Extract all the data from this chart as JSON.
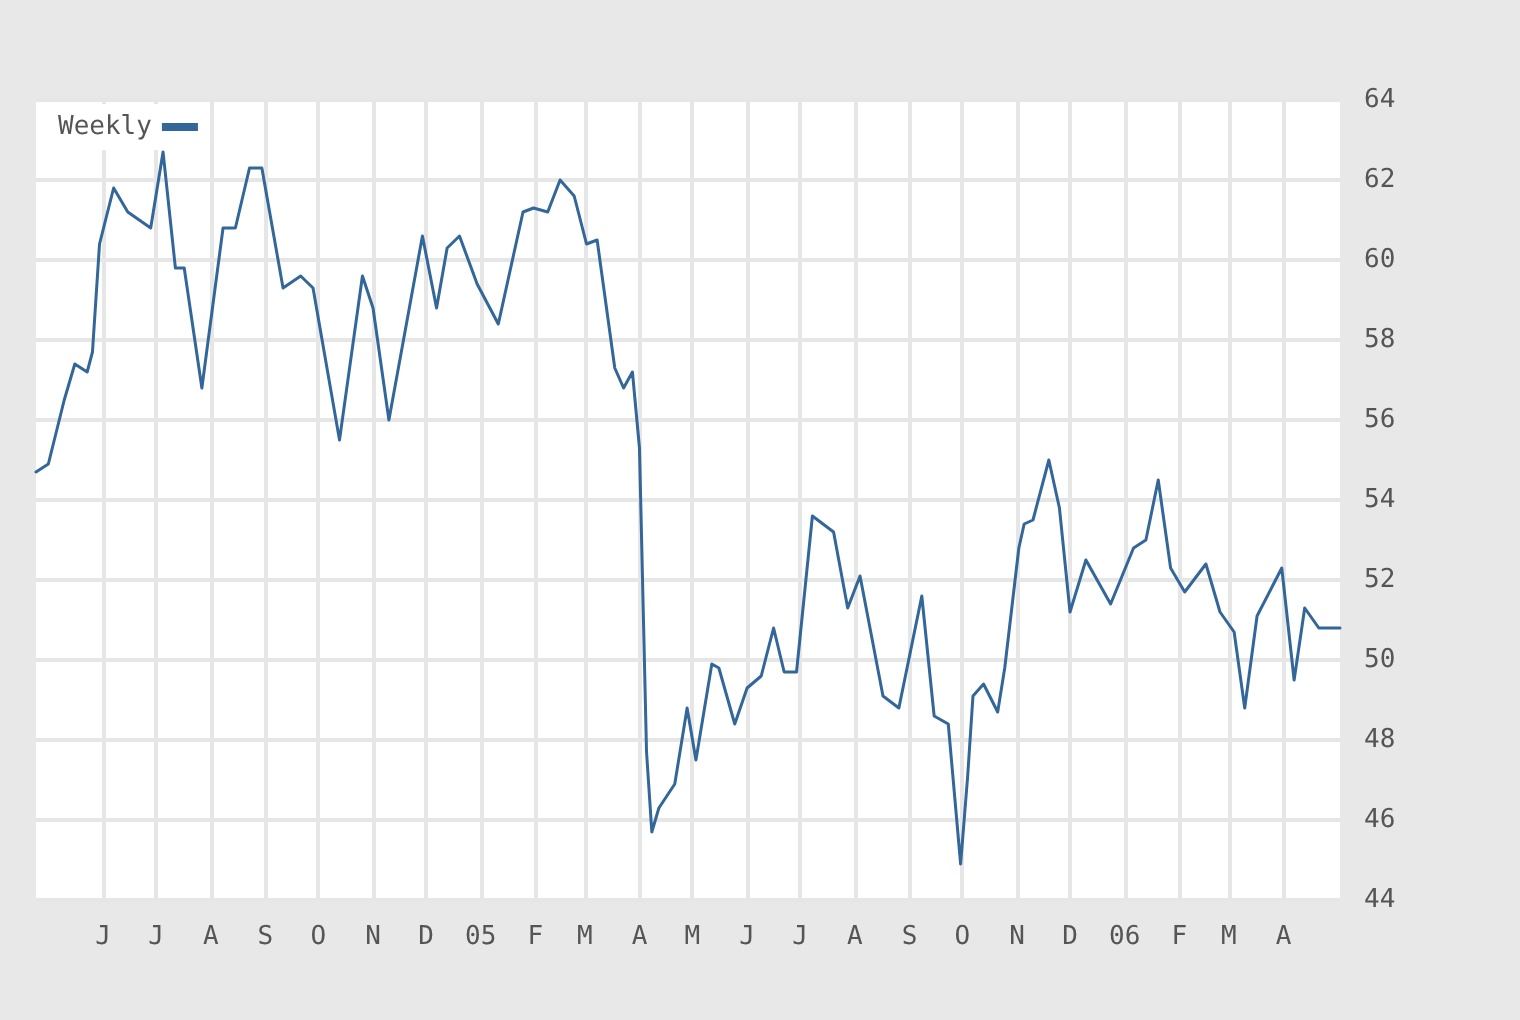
{
  "chart_data": {
    "type": "line",
    "x": [
      "2004-04-24",
      "2004-05-01",
      "2004-05-10",
      "2004-05-16",
      "2004-05-23",
      "2004-05-26",
      "2004-05-30",
      "2004-06-07",
      "2004-06-15",
      "2004-06-28",
      "2004-07-05",
      "2004-07-12",
      "2004-07-17",
      "2004-07-27",
      "2004-08-08",
      "2004-08-15",
      "2004-08-23",
      "2004-08-30",
      "2004-09-11",
      "2004-09-21",
      "2004-09-28",
      "2004-10-13",
      "2004-10-26",
      "2004-11-01",
      "2004-11-10",
      "2004-11-29",
      "2004-12-07",
      "2004-12-13",
      "2004-12-20",
      "2004-12-30",
      "2005-01-11",
      "2005-01-25",
      "2005-01-31",
      "2005-02-08",
      "2005-02-15",
      "2005-02-23",
      "2005-03-02",
      "2005-03-08",
      "2005-03-18",
      "2005-03-23",
      "2005-03-28",
      "2005-04-01",
      "2005-04-05",
      "2005-04-08",
      "2005-04-12",
      "2005-04-18",
      "2005-04-21",
      "2005-04-28",
      "2005-05-03",
      "2005-05-12",
      "2005-05-16",
      "2005-05-25",
      "2005-06-01",
      "2005-06-09",
      "2005-06-16",
      "2005-06-22",
      "2005-06-29",
      "2005-07-08",
      "2005-07-20",
      "2005-07-28",
      "2005-08-04",
      "2005-08-17",
      "2005-08-26",
      "2005-09-08",
      "2005-09-15",
      "2005-09-23",
      "2005-09-30",
      "2005-10-04",
      "2005-10-07",
      "2005-10-13",
      "2005-10-21",
      "2005-10-25",
      "2005-11-02",
      "2005-11-05",
      "2005-11-10",
      "2005-11-19",
      "2005-11-25",
      "2005-12-01",
      "2005-12-10",
      "2005-12-24",
      "2006-01-06",
      "2006-01-13",
      "2006-01-20",
      "2006-01-27",
      "2006-02-04",
      "2006-02-16",
      "2006-02-24",
      "2006-03-04",
      "2006-03-10",
      "2006-03-17",
      "2006-03-31",
      "2006-04-07",
      "2006-04-13",
      "2006-04-21",
      "2006-05-03"
    ],
    "series": [
      {
        "name": "Weekly",
        "color": "#336699",
        "values": [
          54.7,
          54.9,
          56.5,
          57.4,
          57.2,
          57.7,
          60.4,
          61.8,
          61.2,
          60.8,
          62.7,
          59.8,
          59.8,
          56.8,
          60.8,
          60.8,
          62.3,
          62.3,
          59.3,
          59.6,
          59.3,
          55.5,
          59.6,
          58.8,
          56.0,
          60.6,
          58.8,
          60.3,
          60.6,
          59.4,
          58.4,
          61.2,
          61.3,
          61.2,
          62.0,
          61.6,
          60.4,
          60.5,
          57.3,
          56.8,
          57.2,
          55.3,
          47.7,
          45.7,
          46.3,
          46.7,
          46.9,
          48.8,
          47.5,
          49.9,
          49.8,
          48.4,
          49.3,
          49.6,
          50.8,
          49.7,
          49.7,
          53.6,
          53.2,
          51.3,
          52.1,
          49.1,
          48.8,
          51.6,
          48.6,
          48.4,
          44.9,
          47.1,
          49.1,
          49.4,
          48.7,
          49.8,
          52.8,
          53.4,
          53.5,
          55.0,
          53.8,
          51.2,
          52.5,
          51.4,
          52.8,
          53.0,
          54.5,
          52.3,
          51.7,
          52.4,
          51.2,
          50.7,
          48.8,
          51.1,
          52.3,
          49.5,
          51.3,
          50.8,
          50.8
        ]
      }
    ],
    "xlim": [
      "2004-04-24",
      "2006-05-03"
    ],
    "xticks": [
      {
        "value": "2004-06-01",
        "label": "J"
      },
      {
        "value": "2004-07-01",
        "label": "J"
      },
      {
        "value": "2004-08-01",
        "label": "A"
      },
      {
        "value": "2004-09-01",
        "label": "S"
      },
      {
        "value": "2004-10-01",
        "label": "O"
      },
      {
        "value": "2004-11-01",
        "label": "N"
      },
      {
        "value": "2004-12-01",
        "label": "D"
      },
      {
        "value": "2005-01-01",
        "label": "05"
      },
      {
        "value": "2005-02-01",
        "label": "F"
      },
      {
        "value": "2005-03-01",
        "label": "M"
      },
      {
        "value": "2005-04-01",
        "label": "A"
      },
      {
        "value": "2005-05-01",
        "label": "M"
      },
      {
        "value": "2005-06-01",
        "label": "J"
      },
      {
        "value": "2005-07-01",
        "label": "J"
      },
      {
        "value": "2005-08-01",
        "label": "A"
      },
      {
        "value": "2005-09-01",
        "label": "S"
      },
      {
        "value": "2005-10-01",
        "label": "O"
      },
      {
        "value": "2005-11-01",
        "label": "N"
      },
      {
        "value": "2005-12-01",
        "label": "D"
      },
      {
        "value": "2006-01-01",
        "label": "06"
      },
      {
        "value": "2006-02-01",
        "label": "F"
      },
      {
        "value": "2006-03-01",
        "label": "M"
      },
      {
        "value": "2006-04-01",
        "label": "A"
      }
    ],
    "ylim": [
      44,
      64
    ],
    "yticks": [
      44,
      46,
      48,
      50,
      52,
      54,
      56,
      58,
      60,
      62,
      64
    ],
    "grid": true,
    "legend": "top left",
    "line_style": "solid",
    "marker": "none"
  }
}
